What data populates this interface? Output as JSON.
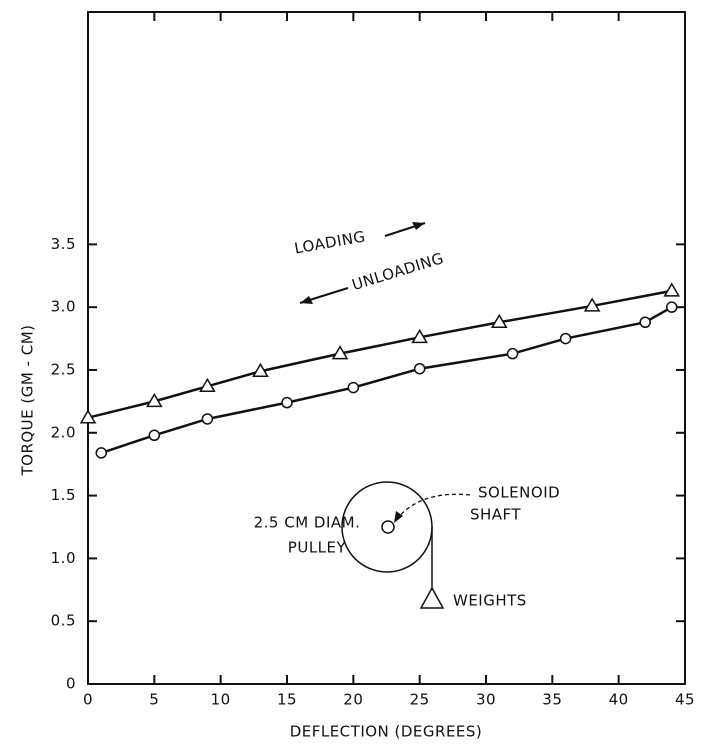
{
  "chart_data": {
    "type": "scatter",
    "ylabel": "TORQUE (GM - CM)",
    "xlabel": "DEFLECTION (DEGREES)",
    "xlim": [
      0,
      45
    ],
    "ylim": [
      0,
      5.35
    ],
    "xticks": [
      0,
      5,
      10,
      15,
      20,
      25,
      30,
      35,
      40,
      45
    ],
    "yticks": [
      0,
      0.5,
      {
        "value": 1,
        "label": "1.0"
      },
      1.5,
      {
        "value": 2,
        "label": "2.0"
      },
      2.5,
      {
        "value": 3,
        "label": "3.0"
      },
      3.5
    ],
    "grid": false,
    "connect": true,
    "series": [
      {
        "name": "LOADING",
        "color": "#111111",
        "marker": "triangle",
        "x": [
          0,
          5,
          9,
          13,
          19,
          25,
          31,
          38,
          44
        ],
        "values": [
          2.12,
          2.25,
          2.37,
          2.49,
          2.63,
          2.76,
          2.88,
          3.01,
          3.13
        ]
      },
      {
        "name": "UNLOADING",
        "color": "#111111",
        "marker": "circle",
        "x": [
          1,
          5,
          9,
          15,
          20,
          25,
          32,
          36,
          42,
          44
        ],
        "values": [
          1.84,
          1.98,
          2.11,
          2.24,
          2.36,
          2.51,
          2.63,
          2.75,
          2.88,
          3.0
        ]
      }
    ],
    "annotations": [
      "2.5 CM DIAM.",
      "PULLEY",
      "SOLENOID",
      "SHAFT",
      "WEIGHTS"
    ]
  }
}
